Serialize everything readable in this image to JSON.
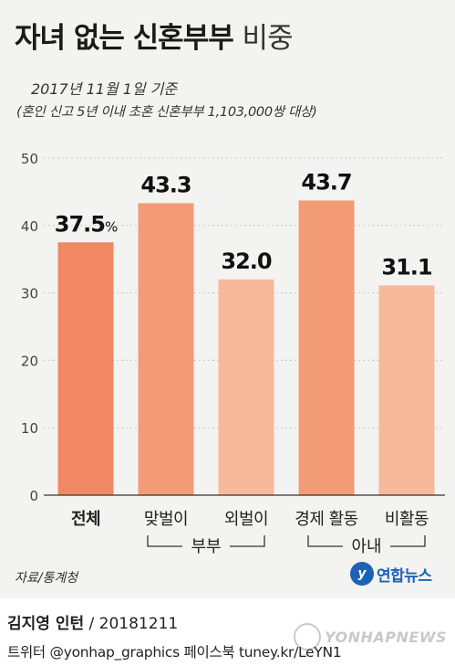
{
  "header": {
    "title_bold": "자녀 없는 신혼부부",
    "title_light": "비중",
    "subtitle": "2017년 11월 1일 기준",
    "note": "(혼인 신고 5년 이내 초혼 신혼부부 1,103,000쌍 대상)"
  },
  "chart_data": {
    "type": "bar",
    "categories": [
      "전체",
      "맞벌이",
      "외벌이",
      "경제 활동",
      "비활동"
    ],
    "values": [
      37.5,
      43.3,
      32.0,
      43.7,
      31.1
    ],
    "value_labels": [
      "37.5",
      "43.3",
      "32.0",
      "43.7",
      "31.1"
    ],
    "unit": "%",
    "ylim": [
      0,
      50
    ],
    "yticks": [
      0,
      10,
      20,
      30,
      40,
      50
    ],
    "groups": [
      {
        "label": "부부",
        "members": [
          "맞벌이",
          "외벌이"
        ]
      },
      {
        "label": "아내",
        "members": [
          "경제 활동",
          "비활동"
        ]
      }
    ],
    "colors": [
      "#f08863",
      "#f39a77",
      "#f7b89b",
      "#f39a77",
      "#f7b89b"
    ],
    "grid": true
  },
  "footer": {
    "source": "자료/통계청",
    "logo_text": "연합뉴스",
    "author": "김지영 인턴",
    "date": "20181211",
    "social": "트위터 @yonhap_graphics  페이스북 tuney.kr/LeYN1",
    "watermark": "YONHAPNEWS"
  }
}
